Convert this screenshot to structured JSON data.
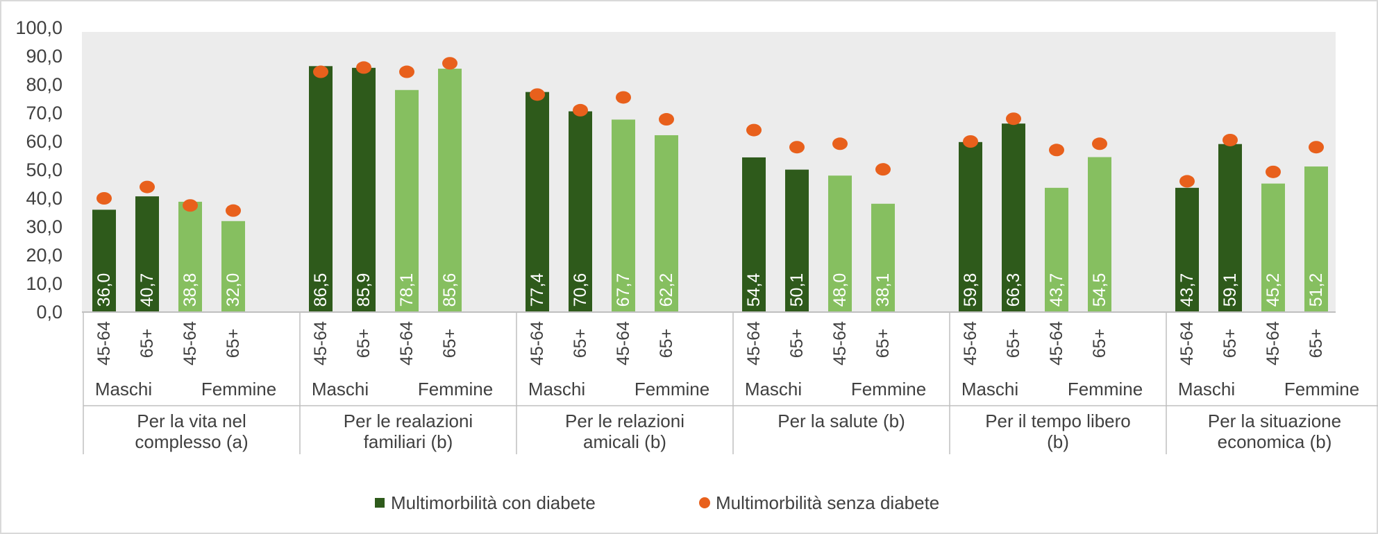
{
  "chart_data": {
    "type": "bar",
    "title": "",
    "xlabel": "",
    "ylabel": "",
    "ylim": [
      0,
      100
    ],
    "yticks": [
      "0,0",
      "10,0",
      "20,0",
      "30,0",
      "40,0",
      "50,0",
      "60,0",
      "70,0",
      "80,0",
      "90,0",
      "100,0"
    ],
    "colors": {
      "dark_bar": "#2e5a1b",
      "light_bar": "#86bf60",
      "dot": "#e8601c",
      "plot_bg": "#ececec",
      "axis_text": "#404040",
      "separator": "#bfbfbf"
    },
    "age_labels": [
      "45-64",
      "65+"
    ],
    "sex_labels": [
      "Maschi",
      "Femmine"
    ],
    "groups": [
      {
        "label_lines": [
          "Per la vita nel",
          "complesso (a)"
        ],
        "bars": [
          36.0,
          40.7,
          38.8,
          32.0
        ],
        "bar_labels": [
          "36,0",
          "40,7",
          "38,8",
          "32,0"
        ],
        "dots": [
          40.0,
          44.0,
          37.5,
          35.7
        ]
      },
      {
        "label_lines": [
          "Per le realazioni",
          "familiari (b)"
        ],
        "bars": [
          86.5,
          85.9,
          78.1,
          85.6
        ],
        "bar_labels": [
          "86,5",
          "85,9",
          "78,1",
          "85,6"
        ],
        "dots": [
          84.5,
          86.0,
          84.5,
          87.5
        ]
      },
      {
        "label_lines": [
          "Per le relazioni",
          "amicali (b)"
        ],
        "bars": [
          77.4,
          70.6,
          67.7,
          62.2
        ],
        "bar_labels": [
          "77,4",
          "70,6",
          "67,7",
          "62,2"
        ],
        "dots": [
          76.5,
          71.0,
          75.5,
          67.8
        ]
      },
      {
        "label_lines": [
          "Per la salute (b)"
        ],
        "bars": [
          54.4,
          50.1,
          48.0,
          38.1
        ],
        "bar_labels": [
          "54,4",
          "50,1",
          "48,0",
          "38,1"
        ],
        "dots": [
          64.0,
          58.0,
          59.2,
          50.2
        ]
      },
      {
        "label_lines": [
          "Per il tempo libero",
          "(b)"
        ],
        "bars": [
          59.8,
          66.3,
          43.7,
          54.5
        ],
        "bar_labels": [
          "59,8",
          "66,3",
          "43,7",
          "54,5"
        ],
        "dots": [
          60.0,
          68.0,
          57.0,
          59.2
        ]
      },
      {
        "label_lines": [
          "Per la situazione",
          "economica (b)"
        ],
        "bars": [
          43.7,
          59.1,
          45.2,
          51.2
        ],
        "bar_labels": [
          "43,7",
          "59,1",
          "45,2",
          "51,2"
        ],
        "dots": [
          46.0,
          60.5,
          49.3,
          58.0
        ]
      }
    ],
    "series": [
      {
        "name": "Multimorbilità con diabete",
        "kind": "bar"
      },
      {
        "name": "Multimorbilità senza diabete",
        "kind": "dot"
      }
    ],
    "legend_position": "bottom",
    "grid": false
  }
}
